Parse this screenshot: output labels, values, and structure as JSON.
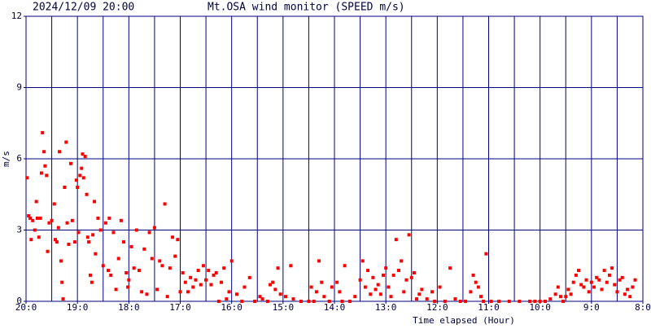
{
  "chart_data": {
    "type": "scatter",
    "timestamp": "2024/12/09 20:00",
    "title": "Mt.OSA wind monitor (SPEED m/s)",
    "y_label": "m/s",
    "x_label": "Time elapsed (Hour)",
    "color": "#ff0000",
    "grid_color": "#000080",
    "xlim": [
      0,
      12
    ],
    "ylim": [
      0,
      12
    ],
    "yticks": [
      0,
      3,
      6,
      9,
      12
    ],
    "xticks": [
      {
        "value": 0,
        "label": "20:0"
      },
      {
        "value": 1,
        "label": "19:0"
      },
      {
        "value": 2,
        "label": "18:0"
      },
      {
        "value": 3,
        "label": "17:0"
      },
      {
        "value": 4,
        "label": "16:0"
      },
      {
        "value": 5,
        "label": "15:0"
      },
      {
        "value": 6,
        "label": "14:0"
      },
      {
        "value": 7,
        "label": "13:0"
      },
      {
        "value": 8,
        "label": "12:0"
      },
      {
        "value": 9,
        "label": "11:0"
      },
      {
        "value": 10,
        "label": "10:0"
      },
      {
        "value": 11,
        "label": "9:0"
      },
      {
        "value": 12,
        "label": "8:0"
      }
    ],
    "xgrid": [
      0.5,
      1,
      1.5,
      2,
      2.5,
      3,
      3.5,
      4,
      4.5,
      5,
      5.5,
      6,
      6.5,
      7,
      7.5,
      8,
      8.5,
      9,
      9.5,
      10,
      10.5,
      11,
      11.5,
      12
    ],
    "ygrid": [
      3,
      6,
      9,
      12
    ],
    "x": [
      0.02,
      0.05,
      0.08,
      0.1,
      0.13,
      0.17,
      0.2,
      0.22,
      0.25,
      0.28,
      0.3,
      0.32,
      0.35,
      0.37,
      0.4,
      0.42,
      0.45,
      0.5,
      0.55,
      0.57,
      0.6,
      0.63,
      0.65,
      0.68,
      0.7,
      0.72,
      0.75,
      0.78,
      0.8,
      0.83,
      0.87,
      0.9,
      0.95,
      0.98,
      1.0,
      1.02,
      1.05,
      1.08,
      1.1,
      1.12,
      1.15,
      1.18,
      1.2,
      1.22,
      1.25,
      1.28,
      1.3,
      1.33,
      1.35,
      1.4,
      1.45,
      1.5,
      1.55,
      1.6,
      1.62,
      1.65,
      1.7,
      1.75,
      1.8,
      1.85,
      1.9,
      1.95,
      1.98,
      2.0,
      2.05,
      2.1,
      2.15,
      2.2,
      2.25,
      2.3,
      2.35,
      2.4,
      2.45,
      2.5,
      2.55,
      2.6,
      2.65,
      2.7,
      2.75,
      2.8,
      2.85,
      2.9,
      2.95,
      3.0,
      3.05,
      3.1,
      3.15,
      3.2,
      3.25,
      3.3,
      3.35,
      3.4,
      3.45,
      3.5,
      3.55,
      3.6,
      3.65,
      3.7,
      3.75,
      3.8,
      3.85,
      3.9,
      3.95,
      4.0,
      4.1,
      4.2,
      4.25,
      4.35,
      4.45,
      4.55,
      4.6,
      4.7,
      4.75,
      4.8,
      4.85,
      4.9,
      4.95,
      5.05,
      5.15,
      5.2,
      5.35,
      5.5,
      5.55,
      5.6,
      5.65,
      5.7,
      5.75,
      5.8,
      5.9,
      5.95,
      6.05,
      6.1,
      6.15,
      6.2,
      6.3,
      6.4,
      6.5,
      6.55,
      6.6,
      6.65,
      6.7,
      6.75,
      6.8,
      6.85,
      6.9,
      6.95,
      7.0,
      7.05,
      7.1,
      7.15,
      7.2,
      7.25,
      7.3,
      7.35,
      7.4,
      7.45,
      7.5,
      7.55,
      7.6,
      7.65,
      7.7,
      7.8,
      7.9,
      7.95,
      8.05,
      8.15,
      8.25,
      8.35,
      8.45,
      8.55,
      8.65,
      8.7,
      8.75,
      8.8,
      8.85,
      8.9,
      8.95,
      9.05,
      9.2,
      9.4,
      9.6,
      9.8,
      9.9,
      10.0,
      10.1,
      10.2,
      10.3,
      10.35,
      10.4,
      10.45,
      10.5,
      10.55,
      10.6,
      10.65,
      10.7,
      10.75,
      10.8,
      10.85,
      10.9,
      10.95,
      11.0,
      11.05,
      11.1,
      11.15,
      11.2,
      11.25,
      11.3,
      11.35,
      11.4,
      11.45,
      11.5,
      11.55,
      11.6,
      11.65,
      11.7,
      11.75,
      11.8,
      11.85
    ],
    "values": [
      5.2,
      3.6,
      3.5,
      2.6,
      3.4,
      3.0,
      4.2,
      3.5,
      2.7,
      3.5,
      5.4,
      7.1,
      6.3,
      5.7,
      5.3,
      2.1,
      3.3,
      3.4,
      4.1,
      2.6,
      2.5,
      3.1,
      6.3,
      1.7,
      0.8,
      0.1,
      4.8,
      6.7,
      3.3,
      2.4,
      5.8,
      3.4,
      2.5,
      5.1,
      4.8,
      2.9,
      5.3,
      5.6,
      6.2,
      5.2,
      6.1,
      4.5,
      2.7,
      2.5,
      1.1,
      0.8,
      2.8,
      4.2,
      2.0,
      3.5,
      3.0,
      1.5,
      3.3,
      1.3,
      3.5,
      1.1,
      2.9,
      0.5,
      1.8,
      3.4,
      2.5,
      1.2,
      0.6,
      0.9,
      2.3,
      1.4,
      3.0,
      1.3,
      0.4,
      2.2,
      0.3,
      2.9,
      1.8,
      3.1,
      0.5,
      1.7,
      1.5,
      4.1,
      0.2,
      1.4,
      2.7,
      1.9,
      2.6,
      0.4,
      1.2,
      0.8,
      0.4,
      1.0,
      0.6,
      0.9,
      1.3,
      0.7,
      1.5,
      0.9,
      1.3,
      0.7,
      1.1,
      1.2,
      0.0,
      0.8,
      1.4,
      0.1,
      0.4,
      1.7,
      0.3,
      0.0,
      0.6,
      1.0,
      0.0,
      0.2,
      0.1,
      0.0,
      0.7,
      0.8,
      0.5,
      1.4,
      0.3,
      0.2,
      1.5,
      0.1,
      0.0,
      0.0,
      0.6,
      0.0,
      0.4,
      1.7,
      0.8,
      0.2,
      0.0,
      0.6,
      0.8,
      0.4,
      0.0,
      1.5,
      0.0,
      0.2,
      0.9,
      1.7,
      0.6,
      1.3,
      0.3,
      1.0,
      0.5,
      0.7,
      0.3,
      1.1,
      1.4,
      0.6,
      0.2,
      1.1,
      2.6,
      1.3,
      1.7,
      0.4,
      0.9,
      2.8,
      1.0,
      1.2,
      0.1,
      0.3,
      0.5,
      0.1,
      0.4,
      0.0,
      0.6,
      0.0,
      1.4,
      0.1,
      0.0,
      0.0,
      0.4,
      1.1,
      0.8,
      0.6,
      0.2,
      0.0,
      2.0,
      0.0,
      0.0,
      0.0,
      0.0,
      0.0,
      0.0,
      0.0,
      0.0,
      0.1,
      0.3,
      0.6,
      0.2,
      0.0,
      0.2,
      0.5,
      0.3,
      0.8,
      1.1,
      1.3,
      0.7,
      0.6,
      0.9,
      0.4,
      0.8,
      0.6,
      1.0,
      0.9,
      0.5,
      1.3,
      0.8,
      1.1,
      1.4,
      0.7,
      0.4,
      0.9,
      1.0,
      0.3,
      0.5,
      0.2,
      0.6,
      0.9
    ]
  }
}
